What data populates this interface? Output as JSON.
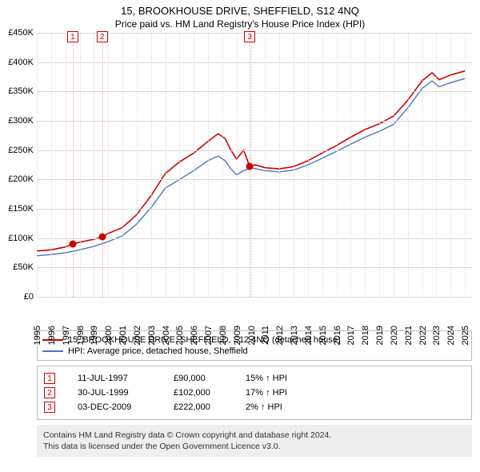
{
  "title": "15, BROOKHOUSE DRIVE, SHEFFIELD, S12 4NQ",
  "subtitle": "Price paid vs. HM Land Registry's House Price Index (HPI)",
  "chart": {
    "type": "line",
    "background_color": "#ffffff",
    "grid_color": "#d9d9d9",
    "grid_v_color": "#d9d9d9",
    "axis_color": "#000000",
    "label_fontsize": 11,
    "x_min": 1995,
    "x_max": 2025.5,
    "y_min": 0,
    "y_max": 450000,
    "y_ticks": [
      0,
      50000,
      100000,
      150000,
      200000,
      250000,
      300000,
      350000,
      400000,
      450000
    ],
    "y_tick_labels": [
      "£0",
      "£50K",
      "£100K",
      "£150K",
      "£200K",
      "£250K",
      "£300K",
      "£350K",
      "£400K",
      "£450K"
    ],
    "x_ticks": [
      1995,
      1996,
      1997,
      1998,
      1999,
      2000,
      2001,
      2002,
      2003,
      2004,
      2005,
      2006,
      2007,
      2008,
      2009,
      2010,
      2011,
      2012,
      2013,
      2014,
      2015,
      2016,
      2017,
      2018,
      2019,
      2020,
      2021,
      2022,
      2023,
      2024,
      2025
    ],
    "series": [
      {
        "name": "15, BROOKHOUSE DRIVE, SHEFFIELD, S12 4NQ (detached house)",
        "color": "#cc0000",
        "line_width": 1.6,
        "points": [
          [
            1995.0,
            78000
          ],
          [
            1996.0,
            80000
          ],
          [
            1997.0,
            85000
          ],
          [
            1997.52,
            90000
          ],
          [
            1998.0,
            93000
          ],
          [
            1999.0,
            98000
          ],
          [
            1999.58,
            102000
          ],
          [
            2000.0,
            108000
          ],
          [
            2001.0,
            118000
          ],
          [
            2002.0,
            140000
          ],
          [
            2003.0,
            172000
          ],
          [
            2004.0,
            210000
          ],
          [
            2005.0,
            230000
          ],
          [
            2006.0,
            245000
          ],
          [
            2007.0,
            265000
          ],
          [
            2007.7,
            278000
          ],
          [
            2008.2,
            270000
          ],
          [
            2008.6,
            250000
          ],
          [
            2009.0,
            235000
          ],
          [
            2009.5,
            250000
          ],
          [
            2009.92,
            222000
          ],
          [
            2010.3,
            225000
          ],
          [
            2011.0,
            220000
          ],
          [
            2012.0,
            218000
          ],
          [
            2013.0,
            222000
          ],
          [
            2014.0,
            232000
          ],
          [
            2015.0,
            245000
          ],
          [
            2016.0,
            258000
          ],
          [
            2017.0,
            272000
          ],
          [
            2018.0,
            285000
          ],
          [
            2019.0,
            295000
          ],
          [
            2020.0,
            308000
          ],
          [
            2021.0,
            335000
          ],
          [
            2022.0,
            368000
          ],
          [
            2022.7,
            382000
          ],
          [
            2023.2,
            370000
          ],
          [
            2024.0,
            378000
          ],
          [
            2025.0,
            385000
          ]
        ]
      },
      {
        "name": "HPI: Average price, detached house, Sheffield",
        "color": "#4a74c9",
        "line_width": 1.4,
        "points": [
          [
            1995.0,
            70000
          ],
          [
            1996.0,
            72000
          ],
          [
            1997.0,
            75000
          ],
          [
            1998.0,
            80000
          ],
          [
            1999.0,
            86000
          ],
          [
            2000.0,
            94000
          ],
          [
            2001.0,
            104000
          ],
          [
            2002.0,
            124000
          ],
          [
            2003.0,
            152000
          ],
          [
            2004.0,
            185000
          ],
          [
            2005.0,
            200000
          ],
          [
            2006.0,
            215000
          ],
          [
            2007.0,
            232000
          ],
          [
            2007.7,
            240000
          ],
          [
            2008.2,
            232000
          ],
          [
            2008.6,
            218000
          ],
          [
            2009.0,
            208000
          ],
          [
            2009.5,
            215000
          ],
          [
            2010.0,
            220000
          ],
          [
            2011.0,
            215000
          ],
          [
            2012.0,
            213000
          ],
          [
            2013.0,
            216000
          ],
          [
            2014.0,
            225000
          ],
          [
            2015.0,
            236000
          ],
          [
            2016.0,
            248000
          ],
          [
            2017.0,
            260000
          ],
          [
            2018.0,
            272000
          ],
          [
            2019.0,
            282000
          ],
          [
            2020.0,
            294000
          ],
          [
            2021.0,
            322000
          ],
          [
            2022.0,
            355000
          ],
          [
            2022.7,
            368000
          ],
          [
            2023.2,
            358000
          ],
          [
            2024.0,
            365000
          ],
          [
            2025.0,
            372000
          ]
        ]
      }
    ],
    "markers": [
      {
        "n": "1",
        "x": 1997.52,
        "y": 90000
      },
      {
        "n": "2",
        "x": 1999.58,
        "y": 102000
      },
      {
        "n": "3",
        "x": 2009.92,
        "y": 222000
      }
    ],
    "marker_border_color": "#cc0000",
    "marker_line_color": "#e9a0a0",
    "marker_dot_color": "#cc0000"
  },
  "legend": {
    "items": [
      {
        "color": "#cc0000",
        "label": "15, BROOKHOUSE DRIVE, SHEFFIELD, S12 4NQ (detached house)"
      },
      {
        "color": "#4a74c9",
        "label": "HPI: Average price, detached house, Sheffield"
      }
    ]
  },
  "events": {
    "badge_border_color": "#cc0000",
    "hpi_suffix": "HPI",
    "arrow_up": "↑",
    "rows": [
      {
        "n": "1",
        "date": "11-JUL-1997",
        "price": "£90,000",
        "delta": "15%"
      },
      {
        "n": "2",
        "date": "30-JUL-1999",
        "price": "£102,000",
        "delta": "17%"
      },
      {
        "n": "3",
        "date": "03-DEC-2009",
        "price": "£222,000",
        "delta": "2%"
      }
    ]
  },
  "footer": {
    "background_color": "#eeeeee",
    "line1": "Contains HM Land Registry data © Crown copyright and database right 2024.",
    "line2": "This data is licensed under the Open Government Licence v3.0."
  }
}
